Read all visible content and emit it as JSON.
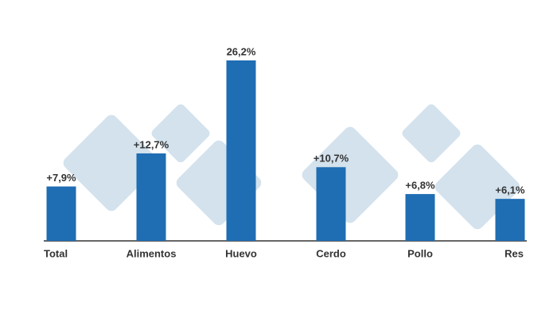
{
  "chart_data": {
    "type": "bar",
    "categories": [
      "Total",
      "Alimentos",
      "Huevo",
      "Cerdo",
      "Pollo",
      "Res"
    ],
    "values": [
      7.9,
      12.7,
      26.2,
      10.7,
      6.8,
      6.1
    ],
    "value_labels": [
      "+7,9%",
      "+12,7%",
      "26,2%",
      "+10,7%",
      "+6,8%",
      "+6,1%"
    ],
    "color": "#1f6db3"
  }
}
